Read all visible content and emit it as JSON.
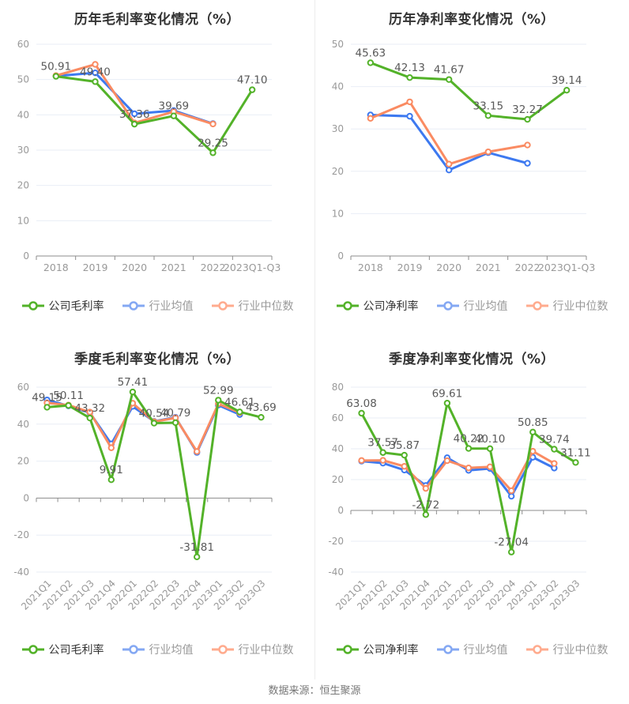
{
  "footer": {
    "source": "数据来源：恒生聚源"
  },
  "style": {
    "company_color": "#53b229",
    "industry_mean_color": "#3d79f0",
    "industry_median_color": "#fa8b62",
    "grid_color": "#e9eef6",
    "axis_color": "#8c8c8c",
    "tick_label_color": "#999999",
    "data_label_color": "#595959",
    "title_color": "#333333"
  },
  "chart_data": [
    {
      "type": "line",
      "title": "历年毛利率变化情况（%）",
      "categories": [
        "2018",
        "2019",
        "2020",
        "2021",
        "2022",
        "2023Q1-Q3"
      ],
      "ylim": [
        0,
        60
      ],
      "yticks": [
        0,
        10,
        20,
        30,
        40,
        50,
        60
      ],
      "grid": true,
      "legend_position": "bottom",
      "layout": {
        "rotate_x_labels": false
      },
      "series": [
        {
          "name": "公司毛利率",
          "color": "#53b229",
          "legend_color": "#53b229",
          "label_color": "#333333",
          "show_labels": true,
          "values": [
            50.91,
            49.4,
            37.36,
            39.69,
            29.25,
            47.1
          ]
        },
        {
          "name": "行业均值",
          "color": "#3d79f0",
          "legend_color": "#84a8f3",
          "label_color": "#999999",
          "values": [
            51.0,
            51.9,
            40.3,
            41.2,
            37.5,
            null
          ]
        },
        {
          "name": "行业中位数",
          "color": "#fa8b62",
          "legend_color": "#ffab8e",
          "label_color": "#999999",
          "values": [
            51.1,
            54.3,
            37.7,
            40.9,
            37.4,
            null
          ]
        }
      ]
    },
    {
      "type": "line",
      "title": "历年净利率变化情况（%）",
      "categories": [
        "2018",
        "2019",
        "2020",
        "2021",
        "2022",
        "2023Q1-Q3"
      ],
      "ylim": [
        0,
        50
      ],
      "yticks": [
        0,
        10,
        20,
        30,
        40,
        50
      ],
      "grid": true,
      "legend_position": "bottom",
      "layout": {
        "rotate_x_labels": false
      },
      "series": [
        {
          "name": "公司净利率",
          "color": "#53b229",
          "legend_color": "#53b229",
          "label_color": "#333333",
          "show_labels": true,
          "values": [
            45.63,
            42.13,
            41.67,
            33.15,
            32.27,
            39.14
          ]
        },
        {
          "name": "行业均值",
          "color": "#3d79f0",
          "legend_color": "#84a8f3",
          "label_color": "#999999",
          "values": [
            33.3,
            33.0,
            20.3,
            24.4,
            21.9,
            null
          ]
        },
        {
          "name": "行业中位数",
          "color": "#fa8b62",
          "legend_color": "#ffab8e",
          "label_color": "#999999",
          "values": [
            32.5,
            36.4,
            21.7,
            24.6,
            26.2,
            null
          ]
        }
      ]
    },
    {
      "type": "line",
      "title": "季度毛利率变化情况（%）",
      "categories": [
        "2021Q1",
        "2021Q2",
        "2021Q3",
        "2021Q4",
        "2022Q1",
        "2022Q2",
        "2022Q3",
        "2022Q4",
        "2023Q1",
        "2023Q2",
        "2023Q3"
      ],
      "ylim": [
        -40,
        60
      ],
      "yticks": [
        -40,
        -20,
        0,
        20,
        40,
        60
      ],
      "grid": true,
      "legend_position": "bottom",
      "layout": {
        "rotate_x_labels": true
      },
      "series": [
        {
          "name": "公司毛利率",
          "color": "#53b229",
          "legend_color": "#53b229",
          "label_color": "#333333",
          "show_labels": true,
          "values": [
            49.15,
            50.11,
            43.32,
            9.91,
            57.41,
            40.54,
            40.79,
            -31.81,
            52.99,
            46.61,
            43.69
          ]
        },
        {
          "name": "行业均值",
          "color": "#3d79f0",
          "legend_color": "#84a8f3",
          "label_color": "#999999",
          "values": [
            53.1,
            49.9,
            46.2,
            29.3,
            49.6,
            41.5,
            43.7,
            24.7,
            50.3,
            45.2,
            null
          ]
        },
        {
          "name": "行业中位数",
          "color": "#fa8b62",
          "legend_color": "#ffab8e",
          "label_color": "#999999",
          "values": [
            51.5,
            50.3,
            46.5,
            27.2,
            51.3,
            41.3,
            43.4,
            25.2,
            51.0,
            46.2,
            null
          ]
        }
      ]
    },
    {
      "type": "line",
      "title": "季度净利率变化情况（%）",
      "categories": [
        "2021Q1",
        "2021Q2",
        "2021Q3",
        "2021Q4",
        "2022Q1",
        "2022Q2",
        "2022Q3",
        "2022Q4",
        "2023Q1",
        "2023Q2",
        "2023Q3"
      ],
      "ylim": [
        -40,
        80
      ],
      "yticks": [
        -40,
        -20,
        0,
        20,
        40,
        60,
        80
      ],
      "grid": true,
      "legend_position": "bottom",
      "layout": {
        "rotate_x_labels": true
      },
      "series": [
        {
          "name": "公司净利率",
          "color": "#53b229",
          "legend_color": "#53b229",
          "label_color": "#333333",
          "show_labels": true,
          "values": [
            63.08,
            37.57,
            35.87,
            -2.72,
            69.61,
            40.22,
            40.1,
            -27.04,
            50.85,
            39.74,
            31.11
          ]
        },
        {
          "name": "行业均值",
          "color": "#3d79f0",
          "legend_color": "#84a8f3",
          "label_color": "#999999",
          "values": [
            32.0,
            30.7,
            26.2,
            16.2,
            34.2,
            26.0,
            27.2,
            9.2,
            34.5,
            27.5,
            null
          ]
        },
        {
          "name": "行业中位数",
          "color": "#fa8b62",
          "legend_color": "#ffab8e",
          "label_color": "#999999",
          "values": [
            32.4,
            32.5,
            28.6,
            14.3,
            32.3,
            27.6,
            28.3,
            12.8,
            38.4,
            30.5,
            null
          ]
        }
      ]
    }
  ]
}
